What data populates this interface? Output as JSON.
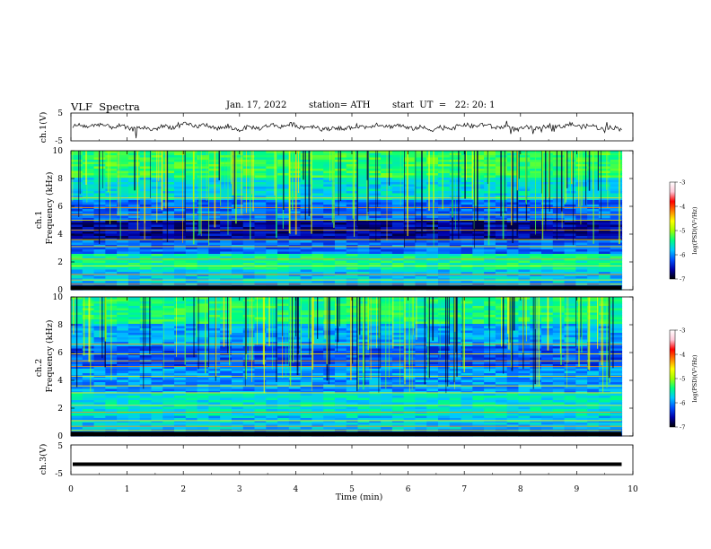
{
  "header": {
    "title": "VLF  Spectra",
    "date": "Jan. 17, 2022",
    "station": "station= ATH",
    "start": "start  UT  =   22: 20: 1"
  },
  "chart_data": {
    "type": "heatmap",
    "title": "VLF  Spectra",
    "xlabel": "Time  (min)",
    "xlim": [
      0,
      10
    ],
    "x_ticks": [
      "0",
      "1",
      "2",
      "3",
      "4",
      "5",
      "6",
      "7",
      "8",
      "9",
      "10"
    ],
    "panels": [
      {
        "kind": "waveform",
        "ylabel": "ch.1(V)",
        "ylim": [
          -5,
          5
        ],
        "y_ticks": [
          "5",
          "-5"
        ],
        "data_end_min": 9.8,
        "color": "#000000"
      },
      {
        "kind": "spectrogram",
        "ylabel_channel": "ch.1",
        "ylabel": "Frequency  (kHz)",
        "ylim": [
          0,
          10
        ],
        "y_ticks": [
          "0",
          "2",
          "4",
          "6",
          "8",
          "10"
        ],
        "data_end_min": 9.8,
        "colorbar": {
          "label": "log(PSD)(V²/Hz)",
          "range": [
            -7,
            -3
          ],
          "ticks": [
            "-3",
            "-4",
            "-5",
            "-6",
            "-7"
          ],
          "colors": [
            "#000000",
            "#0000a8",
            "#0050ff",
            "#00c8ff",
            "#00ff80",
            "#a0ff00",
            "#ffff00",
            "#ff8000",
            "#ff0000",
            "#ffc8d8",
            "#ffffff"
          ]
        }
      },
      {
        "kind": "spectrogram",
        "ylabel_channel": "ch.2",
        "ylabel": "Frequency  (kHz)",
        "ylim": [
          0,
          10
        ],
        "y_ticks": [
          "0",
          "2",
          "4",
          "6",
          "8",
          "10"
        ],
        "data_end_min": 9.8,
        "colorbar": {
          "label": "log(PSD)(V²/Hz)",
          "range": [
            -7,
            -3
          ],
          "ticks": [
            "-3",
            "-4",
            "-5",
            "-6",
            "-7"
          ],
          "colors": [
            "#000000",
            "#0000a8",
            "#0050ff",
            "#00c8ff",
            "#00ff80",
            "#a0ff00",
            "#ffff00",
            "#ff8000",
            "#ff0000",
            "#ffc8d8",
            "#ffffff"
          ]
        }
      },
      {
        "kind": "waveform",
        "ylabel": "ch.3(V)",
        "ylim": [
          -5,
          5
        ],
        "y_ticks": [
          "5",
          "-5"
        ],
        "data_end_min": 9.8,
        "color": "#000000"
      }
    ]
  }
}
